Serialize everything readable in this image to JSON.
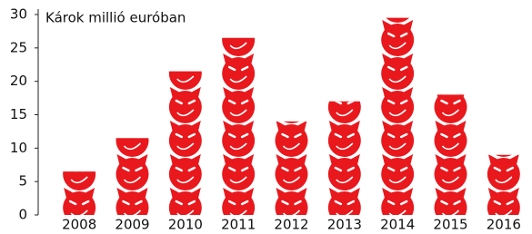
{
  "chart_data": {
    "type": "pictogram",
    "title": "Károk millió euróban",
    "categories": [
      "2008",
      "2009",
      "2010",
      "2011",
      "2012",
      "2013",
      "2014",
      "2015",
      "2016"
    ],
    "values": [
      6.5,
      11.5,
      21.5,
      26.5,
      14,
      17,
      29.5,
      18,
      9
    ],
    "color": "#e8181d",
    "ylim": [
      0,
      30
    ],
    "yticks": [
      0,
      5,
      10,
      15,
      20,
      25,
      30
    ]
  }
}
